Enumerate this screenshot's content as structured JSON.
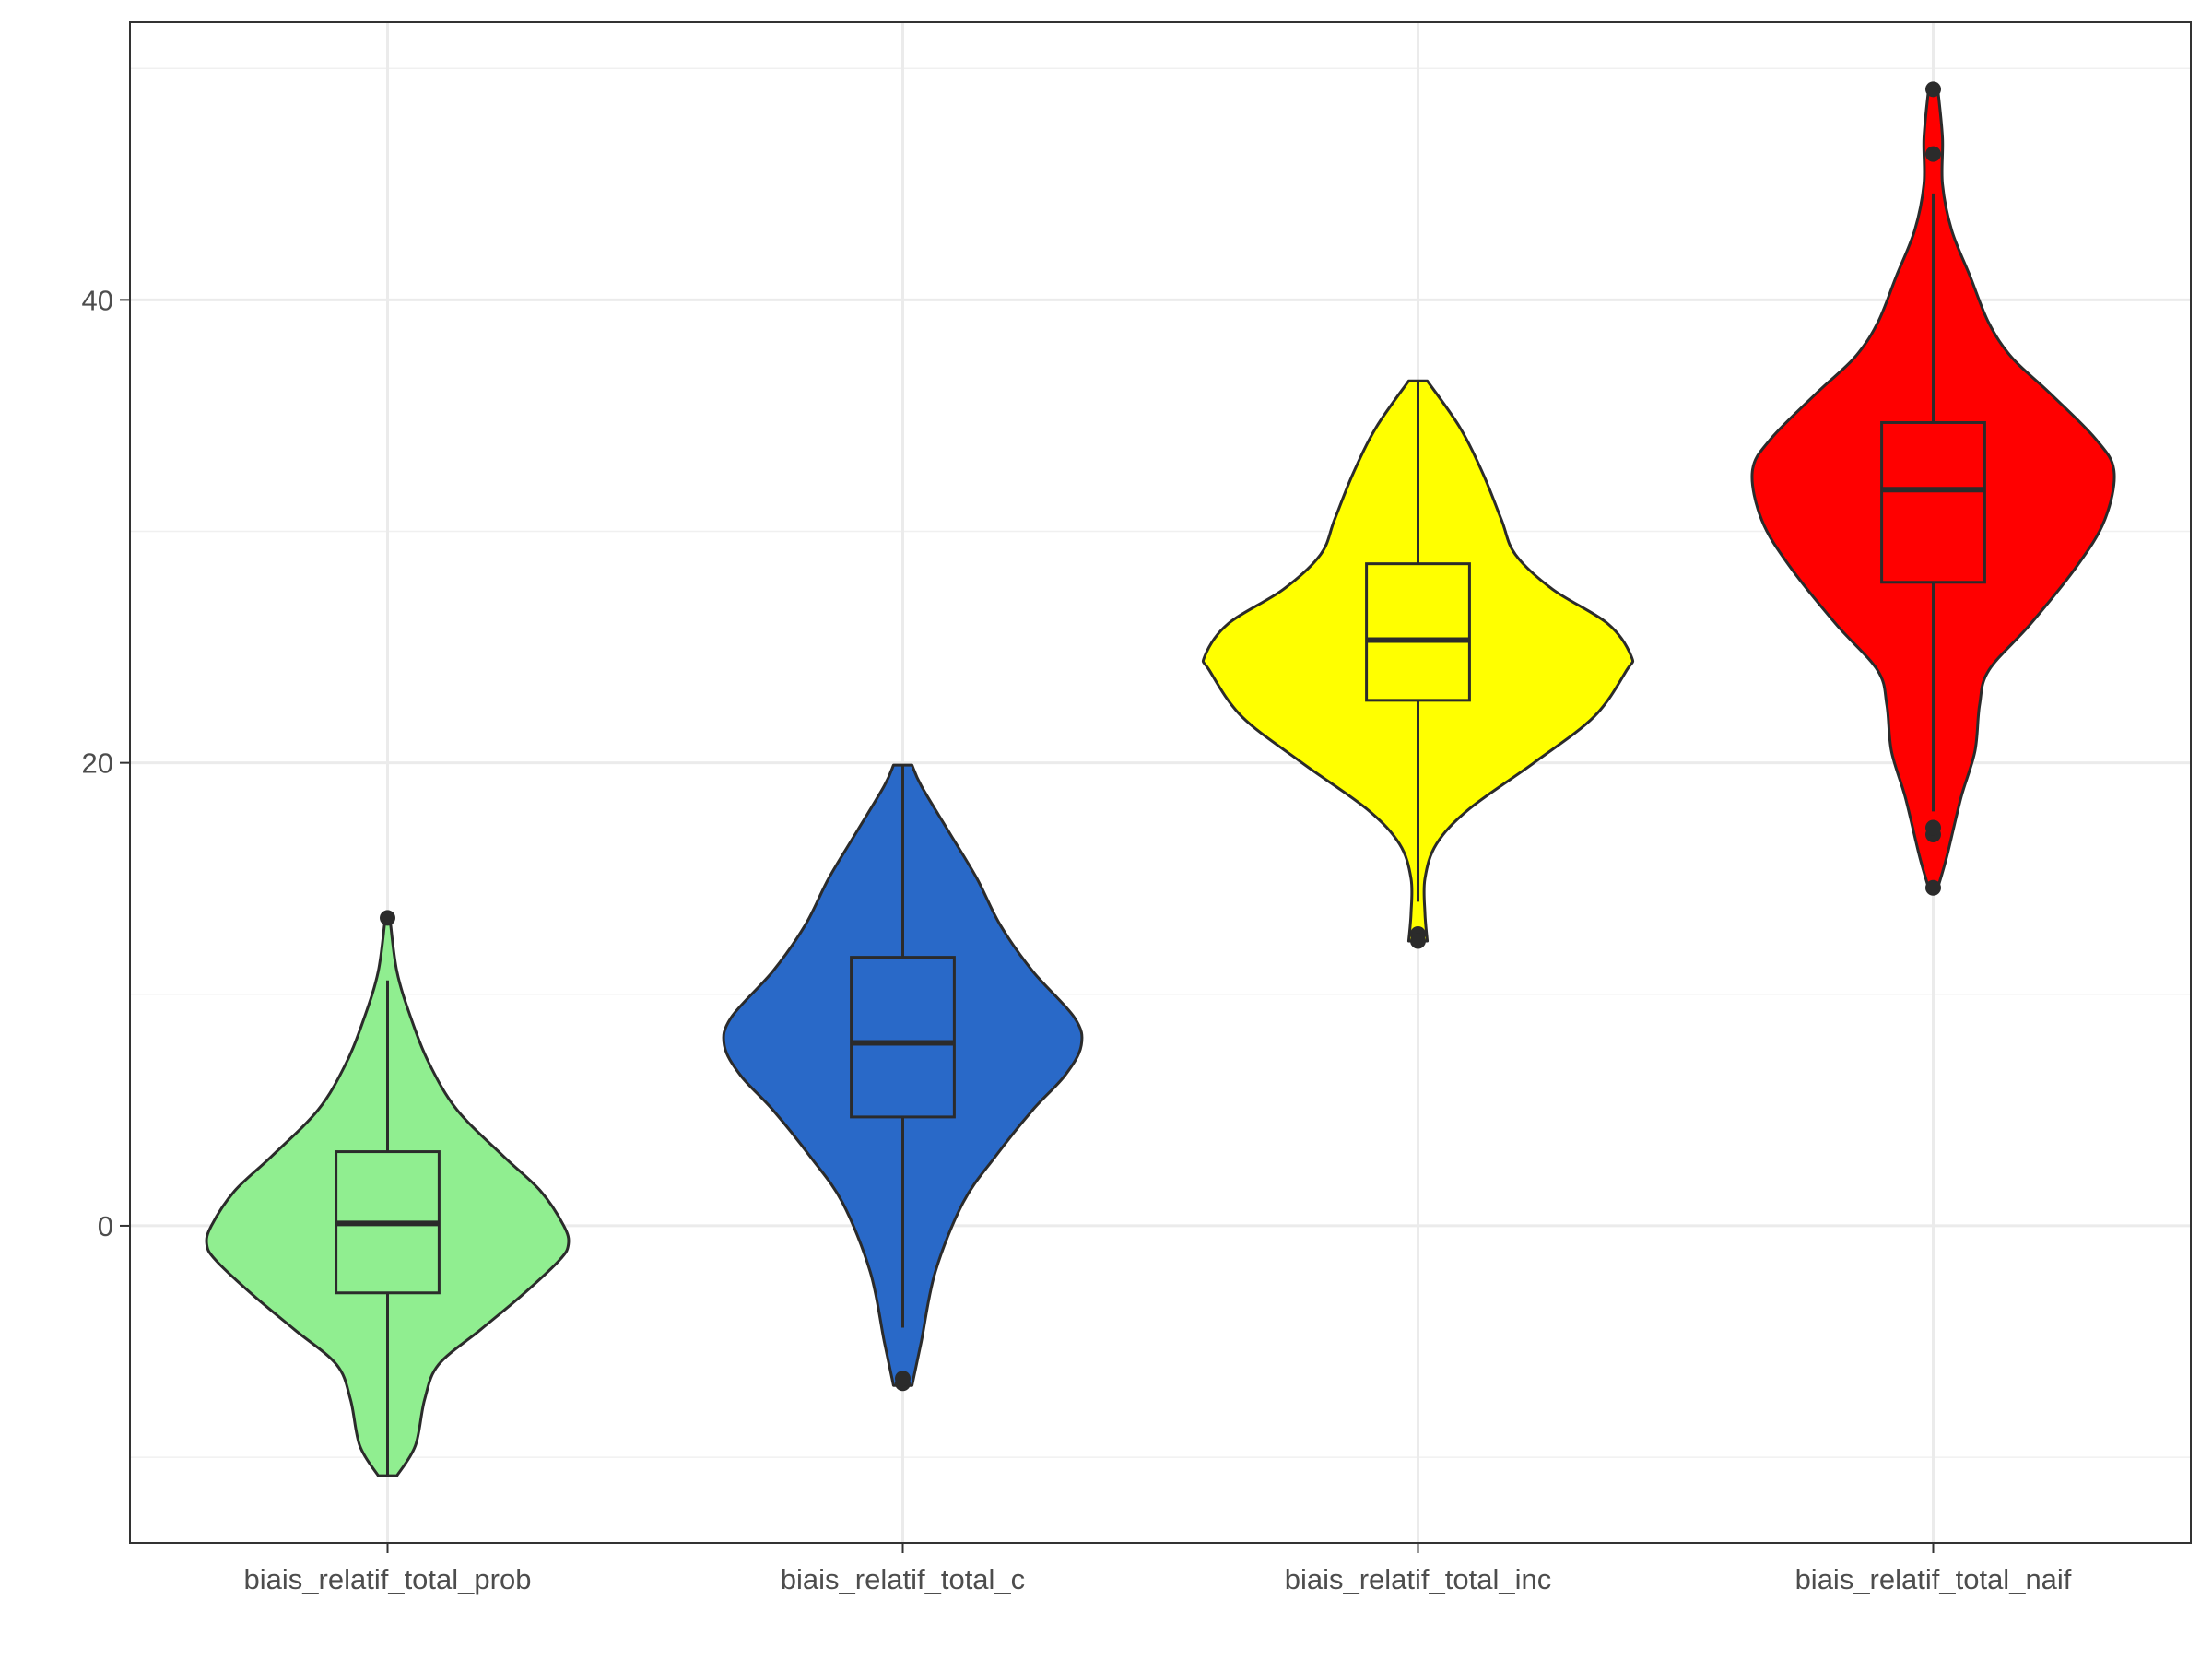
{
  "chart_data": {
    "type": "violin",
    "title": "",
    "xlabel": "",
    "ylabel": "",
    "categories": [
      "biais_relatif_total_prob",
      "biais_relatif_total_c",
      "biais_relatif_total_inc",
      "biais_relatif_total_naif"
    ],
    "ylim": [
      -13.7,
      52
    ],
    "yticks": [
      0,
      20,
      40
    ],
    "grid": true,
    "legend": "none",
    "colors": [
      "#90EE90",
      "#2969C8",
      "#FFFF00",
      "#FF0000"
    ],
    "outline_color": "#2b2b2b",
    "series": [
      {
        "box": {
          "q1": -2.9,
          "median": 0.1,
          "q3": 3.2,
          "whisker_low": -10.8,
          "whisker_high": 10.6
        },
        "outliers": [
          13.3
        ],
        "violin": [
          {
            "y": -10.8,
            "w": 0.04
          },
          {
            "y": -9.5,
            "w": 0.12
          },
          {
            "y": -7.5,
            "w": 0.16
          },
          {
            "y": -6.0,
            "w": 0.22
          },
          {
            "y": -4.5,
            "w": 0.4
          },
          {
            "y": -3.0,
            "w": 0.58
          },
          {
            "y": -1.5,
            "w": 0.74
          },
          {
            "y": -0.8,
            "w": 0.78
          },
          {
            "y": 0.0,
            "w": 0.76
          },
          {
            "y": 1.5,
            "w": 0.66
          },
          {
            "y": 3.0,
            "w": 0.5
          },
          {
            "y": 5.0,
            "w": 0.3
          },
          {
            "y": 7.0,
            "w": 0.18
          },
          {
            "y": 9.0,
            "w": 0.1
          },
          {
            "y": 11.0,
            "w": 0.04
          },
          {
            "y": 13.3,
            "w": 0.01
          }
        ]
      },
      {
        "box": {
          "q1": 4.7,
          "median": 7.9,
          "q3": 11.6,
          "whisker_low": -4.4,
          "whisker_high": 19.9
        },
        "outliers": [
          -6.8,
          -6.6
        ],
        "violin": [
          {
            "y": -6.9,
            "w": 0.04
          },
          {
            "y": -5.0,
            "w": 0.08
          },
          {
            "y": -2.0,
            "w": 0.14
          },
          {
            "y": 1.0,
            "w": 0.26
          },
          {
            "y": 3.0,
            "w": 0.4
          },
          {
            "y": 5.0,
            "w": 0.56
          },
          {
            "y": 6.5,
            "w": 0.7
          },
          {
            "y": 7.8,
            "w": 0.77
          },
          {
            "y": 9.0,
            "w": 0.74
          },
          {
            "y": 11.0,
            "w": 0.56
          },
          {
            "y": 13.0,
            "w": 0.42
          },
          {
            "y": 15.0,
            "w": 0.32
          },
          {
            "y": 17.0,
            "w": 0.2
          },
          {
            "y": 19.0,
            "w": 0.08
          },
          {
            "y": 19.9,
            "w": 0.04
          }
        ]
      },
      {
        "box": {
          "q1": 22.7,
          "median": 25.3,
          "q3": 28.6,
          "whisker_low": 14.0,
          "whisker_high": 36.5
        },
        "outliers": [
          12.6,
          12.3
        ],
        "violin": [
          {
            "y": 12.3,
            "w": 0.04
          },
          {
            "y": 13.5,
            "w": 0.03
          },
          {
            "y": 15.0,
            "w": 0.03
          },
          {
            "y": 16.5,
            "w": 0.08
          },
          {
            "y": 18.0,
            "w": 0.22
          },
          {
            "y": 20.0,
            "w": 0.5
          },
          {
            "y": 22.0,
            "w": 0.76
          },
          {
            "y": 24.0,
            "w": 0.9
          },
          {
            "y": 24.6,
            "w": 0.92
          },
          {
            "y": 26.0,
            "w": 0.82
          },
          {
            "y": 27.5,
            "w": 0.58
          },
          {
            "y": 29.0,
            "w": 0.42
          },
          {
            "y": 30.5,
            "w": 0.36
          },
          {
            "y": 32.5,
            "w": 0.28
          },
          {
            "y": 34.5,
            "w": 0.18
          },
          {
            "y": 36.5,
            "w": 0.04
          }
        ]
      },
      {
        "box": {
          "q1": 27.8,
          "median": 31.8,
          "q3": 34.7,
          "whisker_low": 17.9,
          "whisker_high": 44.6
        },
        "outliers": [
          14.6,
          16.9,
          17.2,
          46.3,
          49.1
        ],
        "violin": [
          {
            "y": 14.6,
            "w": 0.02
          },
          {
            "y": 16.0,
            "w": 0.06
          },
          {
            "y": 18.5,
            "w": 0.12
          },
          {
            "y": 20.5,
            "w": 0.18
          },
          {
            "y": 22.5,
            "w": 0.2
          },
          {
            "y": 24.0,
            "w": 0.24
          },
          {
            "y": 26.0,
            "w": 0.42
          },
          {
            "y": 28.5,
            "w": 0.62
          },
          {
            "y": 30.5,
            "w": 0.74
          },
          {
            "y": 32.6,
            "w": 0.78
          },
          {
            "y": 34.0,
            "w": 0.7
          },
          {
            "y": 36.0,
            "w": 0.5
          },
          {
            "y": 37.5,
            "w": 0.34
          },
          {
            "y": 39.0,
            "w": 0.24
          },
          {
            "y": 41.0,
            "w": 0.16
          },
          {
            "y": 43.0,
            "w": 0.08
          },
          {
            "y": 45.0,
            "w": 0.04
          },
          {
            "y": 47.0,
            "w": 0.04
          },
          {
            "y": 49.1,
            "w": 0.02
          }
        ]
      }
    ]
  }
}
